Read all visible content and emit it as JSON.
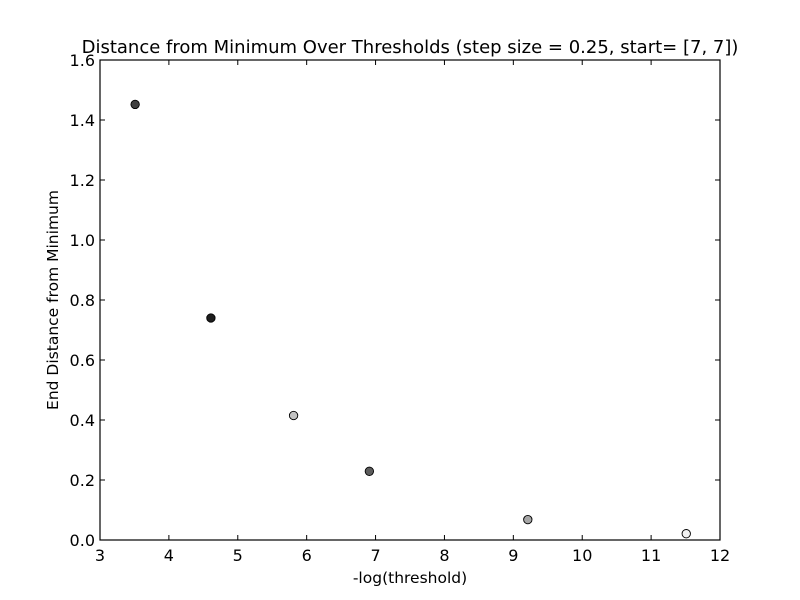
{
  "chart_data": {
    "type": "scatter",
    "title": "Distance from Minimum Over Thresholds (step size = 0.25, start= [7, 7])",
    "xlabel": "-log(threshold)",
    "ylabel": "End Distance from Minimum",
    "xlim": [
      3,
      12
    ],
    "ylim": [
      0.0,
      1.6
    ],
    "xticks": [
      3,
      4,
      5,
      6,
      7,
      8,
      9,
      10,
      11,
      12
    ],
    "xtick_labels": [
      "3",
      "4",
      "5",
      "6",
      "7",
      "8",
      "9",
      "10",
      "11",
      "12"
    ],
    "yticks": [
      0.0,
      0.2,
      0.4,
      0.6,
      0.8,
      1.0,
      1.2,
      1.4,
      1.6
    ],
    "ytick_labels": [
      "0.0",
      "0.2",
      "0.4",
      "0.6",
      "0.8",
      "1.0",
      "1.2",
      "1.4",
      "1.6"
    ],
    "grid": false,
    "legend": null,
    "points": [
      {
        "x": 3.51,
        "y": 1.452,
        "color": "#404040"
      },
      {
        "x": 4.61,
        "y": 0.74,
        "color": "#1e1e1e"
      },
      {
        "x": 5.81,
        "y": 0.415,
        "color": "#c2c2c2"
      },
      {
        "x": 6.91,
        "y": 0.229,
        "color": "#5c5c5c"
      },
      {
        "x": 9.21,
        "y": 0.068,
        "color": "#a6a6a6"
      },
      {
        "x": 11.51,
        "y": 0.021,
        "color": "#f2f2f2"
      }
    ]
  }
}
